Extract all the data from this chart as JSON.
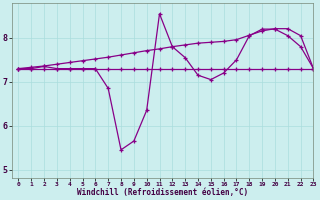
{
  "x": [
    0,
    1,
    2,
    3,
    4,
    5,
    6,
    7,
    8,
    9,
    10,
    11,
    12,
    13,
    14,
    15,
    16,
    17,
    18,
    19,
    20,
    21,
    22,
    23
  ],
  "line_flat": [
    7.3,
    7.3,
    7.3,
    7.3,
    7.3,
    7.3,
    7.3,
    7.3,
    7.3,
    7.3,
    7.3,
    7.3,
    7.3,
    7.3,
    7.3,
    7.3,
    7.3,
    7.3,
    7.3,
    7.3,
    7.3,
    7.3,
    7.3,
    7.3
  ],
  "line_rising": [
    7.3,
    7.33,
    7.36,
    7.4,
    7.44,
    7.48,
    7.52,
    7.56,
    7.61,
    7.66,
    7.71,
    7.75,
    7.8,
    7.84,
    7.88,
    7.9,
    7.92,
    7.96,
    8.06,
    8.16,
    8.21,
    8.21,
    8.05,
    7.3
  ],
  "line_zigzag": [
    7.3,
    7.3,
    7.35,
    7.3,
    7.3,
    7.3,
    7.3,
    6.85,
    5.45,
    5.65,
    6.35,
    8.55,
    7.8,
    7.55,
    7.15,
    7.05,
    7.2,
    7.5,
    8.05,
    8.2,
    8.2,
    8.05,
    7.8,
    7.3
  ],
  "color": "#880088",
  "bg_color": "#cceeee",
  "grid_color": "#aadddd",
  "xlabel": "Windchill (Refroidissement éolien,°C)",
  "xlim": [
    -0.5,
    23
  ],
  "ylim": [
    4.8,
    8.8
  ],
  "yticks": [
    5,
    6,
    7,
    8
  ],
  "xticks": [
    0,
    1,
    2,
    3,
    4,
    5,
    6,
    7,
    8,
    9,
    10,
    11,
    12,
    13,
    14,
    15,
    16,
    17,
    18,
    19,
    20,
    21,
    22,
    23
  ]
}
